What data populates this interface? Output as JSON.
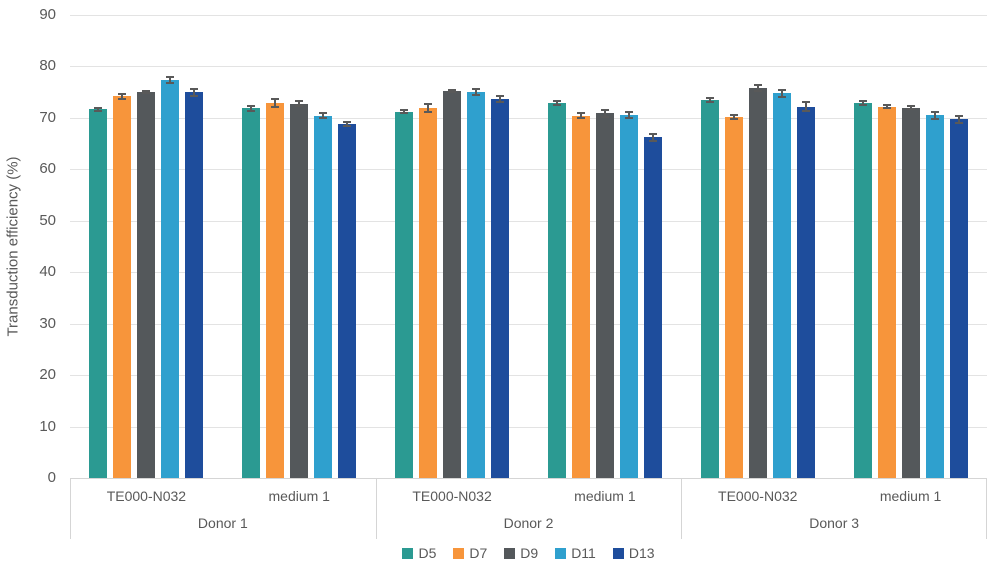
{
  "chart_data": {
    "type": "bar",
    "title": "",
    "ylabel": "Transduction efficiency (%)",
    "xlabel": "",
    "ylim": [
      0,
      90
    ],
    "yticks": [
      0,
      10,
      20,
      30,
      40,
      50,
      60,
      70,
      80,
      90
    ],
    "grid": true,
    "error_bars": true,
    "legend_position": "bottom",
    "colors": {
      "gridline": "#e3e3e3",
      "axis_line": "#d5d5d5",
      "text": "#595959",
      "error_bar": "#595959"
    },
    "group_labels": [
      "Donor 1",
      "Donor 2",
      "Donor 3"
    ],
    "subgroup_labels": [
      "TE000-N032",
      "medium 1"
    ],
    "categories": [
      {
        "donor": "Donor 1",
        "condition": "TE000-N032"
      },
      {
        "donor": "Donor 1",
        "condition": "medium 1"
      },
      {
        "donor": "Donor 2",
        "condition": "TE000-N032"
      },
      {
        "donor": "Donor 2",
        "condition": "medium 1"
      },
      {
        "donor": "Donor 3",
        "condition": "TE000-N032"
      },
      {
        "donor": "Donor 3",
        "condition": "medium 1"
      }
    ],
    "series": [
      {
        "name": "D5",
        "color": "#2B9A92",
        "values": [
          71.7,
          71.9,
          71.2,
          72.9,
          73.5,
          72.9
        ],
        "errors": [
          0.5,
          0.7,
          0.5,
          0.6,
          0.6,
          0.6
        ]
      },
      {
        "name": "D7",
        "color": "#F7953B",
        "values": [
          74.2,
          72.9,
          71.9,
          70.4,
          70.2,
          72.2
        ],
        "errors": [
          0.7,
          0.9,
          1.0,
          0.7,
          0.6,
          0.5
        ]
      },
      {
        "name": "D9",
        "color": "#54585B",
        "values": [
          75.0,
          72.8,
          75.2,
          70.9,
          75.8,
          72.0
        ],
        "errors": [
          0.4,
          0.6,
          0.4,
          0.9,
          0.7,
          0.5
        ]
      },
      {
        "name": "D11",
        "color": "#2FA0CE",
        "values": [
          77.3,
          70.4,
          75.1,
          70.6,
          74.8,
          70.5
        ],
        "errors": [
          0.8,
          0.7,
          0.8,
          0.8,
          0.9,
          0.9
        ]
      },
      {
        "name": "D13",
        "color": "#1E4D9C",
        "values": [
          75.0,
          68.8,
          73.7,
          66.2,
          72.2,
          69.7
        ],
        "errors": [
          0.9,
          0.5,
          0.8,
          0.9,
          1.0,
          0.8
        ]
      }
    ]
  }
}
